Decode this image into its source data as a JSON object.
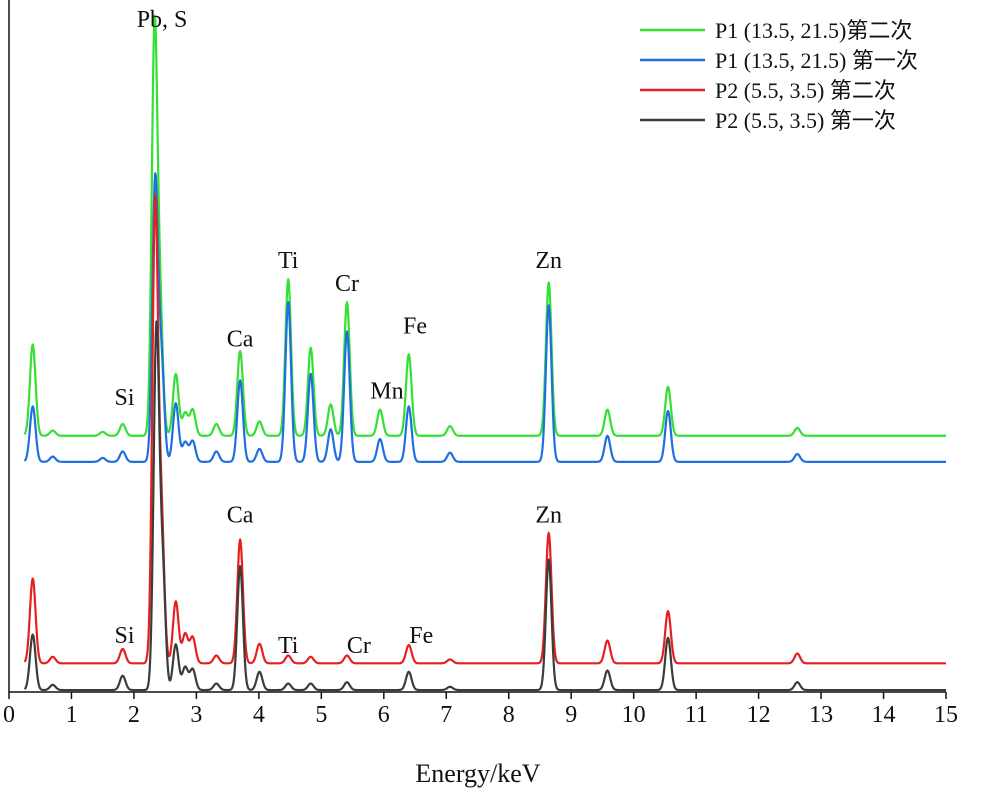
{
  "chart_data": {
    "type": "line",
    "title": "",
    "xlabel": "Energy/keV",
    "ylabel": "",
    "xlim": [
      0,
      15
    ],
    "x_ticks": [
      "0",
      "1",
      "2",
      "3",
      "4",
      "5",
      "6",
      "7",
      "8",
      "9",
      "10",
      "11",
      "12",
      "13",
      "14",
      "15"
    ],
    "grid": false,
    "legend_position": "top-right",
    "series": [
      {
        "name": "P1 (13.5, 21.5)第二次",
        "color": "#33e033",
        "offset": 0.39,
        "baseline": 0.003,
        "peaks": [
          [
            0.38,
            0.14
          ],
          [
            0.7,
            0.008
          ],
          [
            1.5,
            0.006
          ],
          [
            1.82,
            0.018
          ],
          [
            2.33,
            0.62
          ],
          [
            2.42,
            0.18
          ],
          [
            2.67,
            0.095
          ],
          [
            2.82,
            0.035
          ],
          [
            2.94,
            0.04
          ],
          [
            3.32,
            0.018
          ],
          [
            3.7,
            0.13
          ],
          [
            4.01,
            0.022
          ],
          [
            4.47,
            0.24
          ],
          [
            4.83,
            0.135
          ],
          [
            5.15,
            0.048
          ],
          [
            5.41,
            0.205
          ],
          [
            5.94,
            0.04
          ],
          [
            6.4,
            0.125
          ],
          [
            7.06,
            0.015
          ],
          [
            8.64,
            0.235
          ],
          [
            9.58,
            0.04
          ],
          [
            10.55,
            0.075
          ],
          [
            12.62,
            0.012
          ]
        ]
      },
      {
        "name": "P1 (13.5, 21.5) 第一次",
        "color": "#1f6fe0",
        "offset": 0.35,
        "baseline": 0.003,
        "peaks": [
          [
            0.38,
            0.085
          ],
          [
            0.7,
            0.008
          ],
          [
            1.5,
            0.006
          ],
          [
            1.82,
            0.016
          ],
          [
            2.34,
            0.43
          ],
          [
            2.44,
            0.15
          ],
          [
            2.67,
            0.09
          ],
          [
            2.82,
            0.03
          ],
          [
            2.94,
            0.032
          ],
          [
            3.32,
            0.016
          ],
          [
            3.7,
            0.125
          ],
          [
            4.01,
            0.02
          ],
          [
            4.47,
            0.245
          ],
          [
            4.83,
            0.135
          ],
          [
            5.15,
            0.05
          ],
          [
            5.41,
            0.2
          ],
          [
            5.94,
            0.035
          ],
          [
            6.4,
            0.085
          ],
          [
            7.06,
            0.014
          ],
          [
            8.64,
            0.24
          ],
          [
            9.58,
            0.04
          ],
          [
            10.55,
            0.078
          ],
          [
            12.62,
            0.012
          ]
        ]
      },
      {
        "name": "P2 (5.5, 3.5) 第二次",
        "color": "#e62020",
        "offset": 0.04,
        "baseline": 0.004,
        "peaks": [
          [
            0.38,
            0.13
          ],
          [
            0.7,
            0.01
          ],
          [
            1.82,
            0.022
          ],
          [
            2.34,
            0.7
          ],
          [
            2.44,
            0.22
          ],
          [
            2.67,
            0.095
          ],
          [
            2.82,
            0.045
          ],
          [
            2.94,
            0.04
          ],
          [
            3.32,
            0.012
          ],
          [
            3.7,
            0.19
          ],
          [
            4.01,
            0.03
          ],
          [
            4.47,
            0.012
          ],
          [
            4.83,
            0.01
          ],
          [
            5.41,
            0.012
          ],
          [
            6.4,
            0.028
          ],
          [
            7.06,
            0.006
          ],
          [
            8.64,
            0.2
          ],
          [
            9.58,
            0.035
          ],
          [
            10.55,
            0.08
          ],
          [
            12.62,
            0.015
          ]
        ]
      },
      {
        "name": "P2 (5.5, 3.5) 第一次",
        "color": "#3a3d39",
        "offset": 0.0,
        "baseline": 0.003,
        "peaks": [
          [
            0.38,
            0.085
          ],
          [
            0.7,
            0.008
          ],
          [
            1.82,
            0.022
          ],
          [
            2.36,
            0.55
          ],
          [
            2.46,
            0.18
          ],
          [
            2.67,
            0.07
          ],
          [
            2.82,
            0.035
          ],
          [
            2.94,
            0.032
          ],
          [
            3.32,
            0.01
          ],
          [
            3.7,
            0.19
          ],
          [
            4.01,
            0.028
          ],
          [
            4.47,
            0.01
          ],
          [
            4.83,
            0.01
          ],
          [
            5.41,
            0.012
          ],
          [
            6.4,
            0.028
          ],
          [
            7.06,
            0.005
          ],
          [
            8.64,
            0.2
          ],
          [
            9.58,
            0.03
          ],
          [
            10.55,
            0.08
          ],
          [
            12.62,
            0.012
          ]
        ]
      }
    ],
    "annotations": [
      {
        "text": "Pb, S",
        "x": 2.45,
        "y": 1.02
      },
      {
        "text": "Si",
        "x": 1.85,
        "y": 0.44
      },
      {
        "text": "Ca",
        "x": 3.7,
        "y": 0.53
      },
      {
        "text": "Ti",
        "x": 4.47,
        "y": 0.65
      },
      {
        "text": "Cr",
        "x": 5.41,
        "y": 0.615
      },
      {
        "text": "Mn",
        "x": 6.05,
        "y": 0.45
      },
      {
        "text": "Fe",
        "x": 6.5,
        "y": 0.55
      },
      {
        "text": "Zn",
        "x": 8.64,
        "y": 0.65
      },
      {
        "text": "Ca",
        "x": 3.7,
        "y": 0.26
      },
      {
        "text": "Zn",
        "x": 8.64,
        "y": 0.26
      },
      {
        "text": "Si",
        "x": 1.85,
        "y": 0.075
      },
      {
        "text": "Ti",
        "x": 4.47,
        "y": 0.06
      },
      {
        "text": "Cr",
        "x": 5.6,
        "y": 0.06
      },
      {
        "text": "Fe",
        "x": 6.6,
        "y": 0.075
      }
    ]
  }
}
